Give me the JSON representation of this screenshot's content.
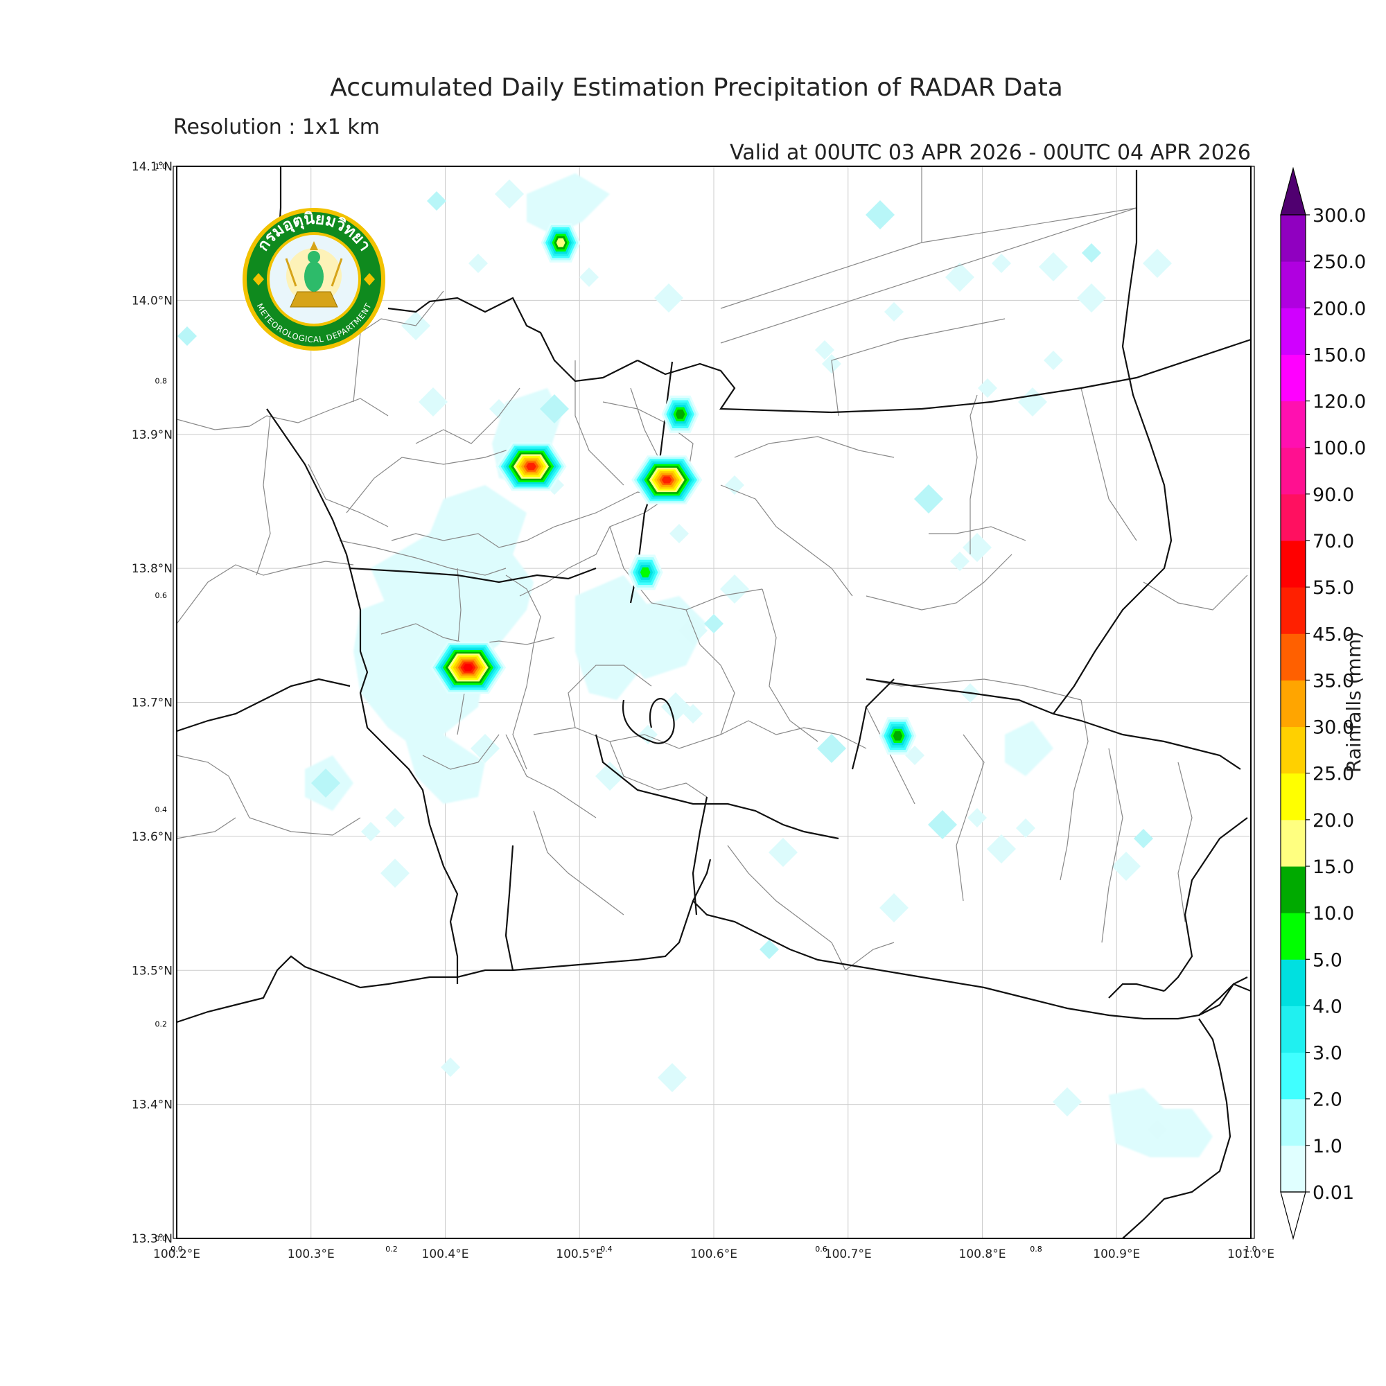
{
  "title": "Accumulated Daily Estimation Precipitation of RADAR Data",
  "resolution": "Resolution : 1x1 km",
  "valid": "Valid at 00UTC 03 APR 2026 - 00UTC 04 APR 2026",
  "logo": {
    "text_top": "กรมอุตุนิยมวิทยา",
    "text_bottom": "METEOROLOGICAL DEPARTMENT"
  },
  "axes": {
    "lon_ticks": [
      "100.2°E",
      "100.3°E",
      "100.4°E",
      "100.5°E",
      "100.6°E",
      "100.7°E",
      "100.8°E",
      "100.9°E",
      "101.0°E"
    ],
    "lat_ticks": [
      "14.1°N",
      "14.0°N",
      "13.9°N",
      "13.8°N",
      "13.7°N",
      "13.6°N",
      "13.5°N",
      "13.4°N",
      "13.3°N"
    ],
    "inner_x_ticks": [
      "0.0",
      "0.2",
      "0.4",
      "0.6",
      "0.8",
      "1.0"
    ],
    "inner_y_ticks": [
      "1.0",
      "0.8",
      "0.6",
      "0.4",
      "0.2",
      "0.0"
    ],
    "lon_range": [
      100.2,
      101.0
    ],
    "lat_range": [
      13.3,
      14.1
    ],
    "grid": true
  },
  "colorbar": {
    "label": "Rainfalls (mm)",
    "levels": [
      "0.01",
      "1.0",
      "2.0",
      "3.0",
      "4.0",
      "5.0",
      "10.0",
      "15.0",
      "20.0",
      "25.0",
      "30.0",
      "35.0",
      "45.0",
      "55.0",
      "70.0",
      "90.0",
      "100.0",
      "120.0",
      "150.0",
      "200.0",
      "250.0",
      "300.0"
    ],
    "colors": [
      "#e0ffff",
      "#b0ffff",
      "#40ffff",
      "#20f0f0",
      "#00e0e0",
      "#00ff00",
      "#00aa00",
      "#ffff80",
      "#ffff00",
      "#ffd000",
      "#ffa500",
      "#ff6000",
      "#ff2000",
      "#ff0000",
      "#ff1060",
      "#ff1090",
      "#ff10b0",
      "#ff00ff",
      "#d000ff",
      "#b000e0",
      "#9000c0",
      "#700090"
    ],
    "over_color": "#500070"
  },
  "rain_cells": [
    {
      "lon": 100.486,
      "lat": 14.043,
      "mm": 18.0
    },
    {
      "lon": 100.464,
      "lat": 13.876,
      "mm": 45.0
    },
    {
      "lon": 100.565,
      "lat": 13.866,
      "mm": 45.0
    },
    {
      "lon": 100.575,
      "lat": 13.915,
      "mm": 12.0
    },
    {
      "lon": 100.549,
      "lat": 13.797,
      "mm": 6.0
    },
    {
      "lon": 100.417,
      "lat": 13.726,
      "mm": 55.0
    },
    {
      "lon": 100.737,
      "lat": 13.675,
      "mm": 12.0
    }
  ]
}
